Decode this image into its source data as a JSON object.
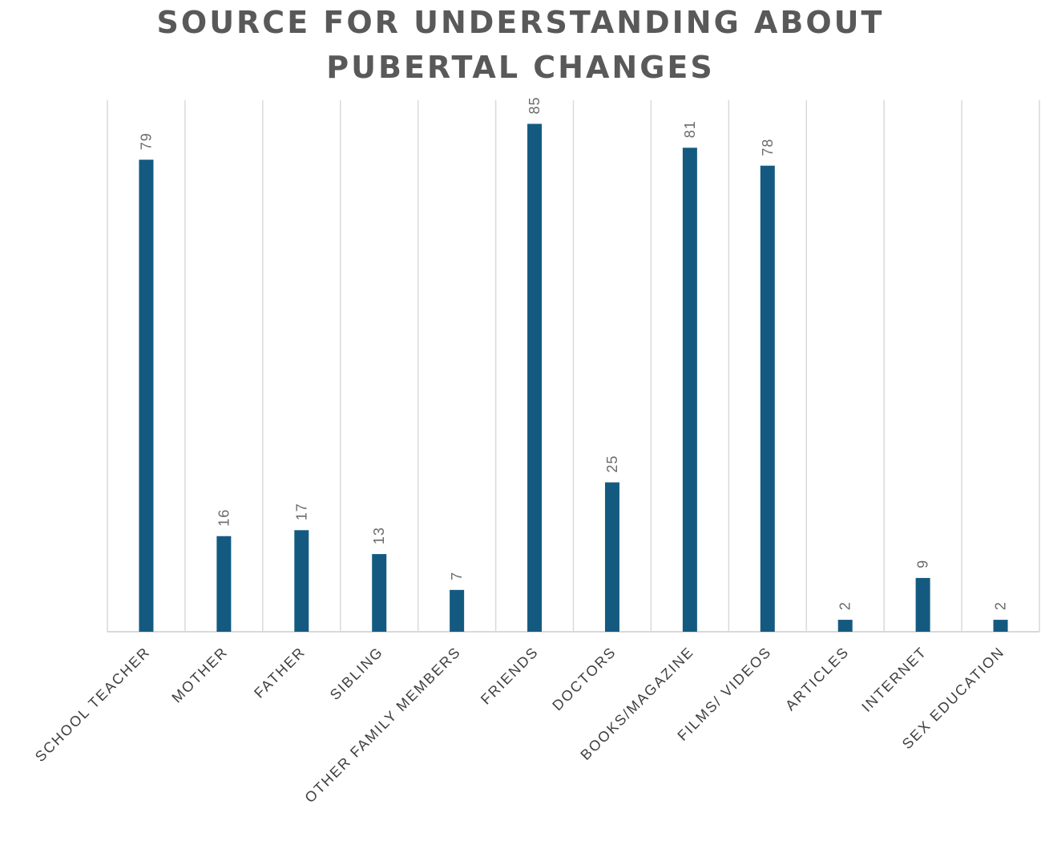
{
  "chart_data": {
    "type": "bar",
    "title_lines": [
      "SOURCE FOR UNDERSTANDING ABOUT",
      "PUBERTAL CHANGES"
    ],
    "categories": [
      "SCHOOL TEACHER",
      "MOTHER",
      "FATHER",
      "SIBLING",
      "OTHER FAMILY MEMBERS",
      "FRIENDS",
      "DOCTORS",
      "BOOKS/MAGAZINE",
      "FILMS/ VIDEOS",
      "ARTICLES",
      "INTERNET",
      "SEX EDUCATION"
    ],
    "values": [
      79,
      16,
      17,
      13,
      7,
      85,
      25,
      81,
      78,
      2,
      9,
      2
    ],
    "data_labels": [
      "79",
      "16",
      "17",
      "13",
      "7",
      "85",
      "25",
      "81",
      "78",
      "2",
      "9",
      "2"
    ],
    "ylim": [
      0,
      90
    ],
    "grid": "vertical",
    "legend": "none",
    "bar_color": "#145a80"
  }
}
